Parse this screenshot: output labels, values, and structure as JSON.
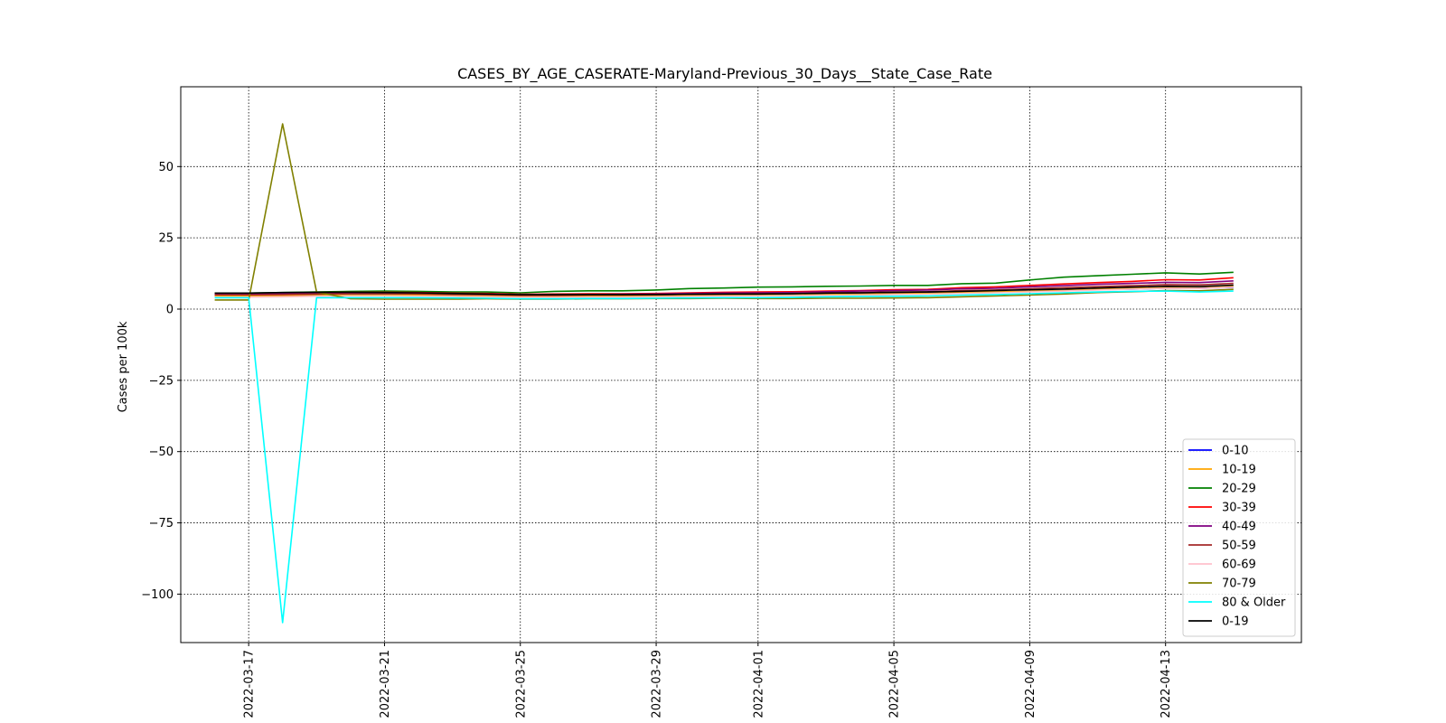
{
  "chart_data": {
    "type": "line",
    "title": "CASES_BY_AGE_CASERATE-Maryland-Previous_30_Days__State_Case_Rate",
    "xlabel": "",
    "ylabel": "Cases per 100k",
    "xlim": [
      "2022-03-15",
      "2022-04-17"
    ],
    "ylim": [
      -117,
      78
    ],
    "yticks": [
      -100,
      -75,
      -50,
      -25,
      0,
      25,
      50
    ],
    "ytick_labels": [
      "−100",
      "−75",
      "−50",
      "−25",
      "0",
      "25",
      "50"
    ],
    "xticks": [
      "2022-03-17",
      "2022-03-21",
      "2022-03-25",
      "2022-03-29",
      "2022-04-01",
      "2022-04-05",
      "2022-04-09",
      "2022-04-13"
    ],
    "grid": true,
    "legend_position": "lower-right",
    "x": [
      "2022-03-16",
      "2022-03-17",
      "2022-03-18",
      "2022-03-19",
      "2022-03-20",
      "2022-03-21",
      "2022-03-22",
      "2022-03-23",
      "2022-03-24",
      "2022-03-25",
      "2022-03-26",
      "2022-03-27",
      "2022-03-28",
      "2022-03-29",
      "2022-03-30",
      "2022-03-31",
      "2022-04-01",
      "2022-04-02",
      "2022-04-03",
      "2022-04-04",
      "2022-04-05",
      "2022-04-06",
      "2022-04-07",
      "2022-04-08",
      "2022-04-09",
      "2022-04-10",
      "2022-04-11",
      "2022-04-12",
      "2022-04-13",
      "2022-04-14",
      "2022-04-15"
    ],
    "series": [
      {
        "name": "0-10",
        "color": "#0000ff",
        "values": [
          4.8,
          4.8,
          4.8,
          4.9,
          5.0,
          5.0,
          5.0,
          4.9,
          4.8,
          4.6,
          4.6,
          4.7,
          4.7,
          4.8,
          4.9,
          5.0,
          5.0,
          5.1,
          5.3,
          5.4,
          5.6,
          5.6,
          5.9,
          6.0,
          6.2,
          6.4,
          6.8,
          7.0,
          7.3,
          7.3,
          7.6
        ]
      },
      {
        "name": "10-19",
        "color": "#ffa500",
        "values": [
          4.6,
          4.6,
          4.7,
          4.8,
          4.9,
          4.9,
          4.9,
          4.8,
          4.7,
          4.5,
          4.5,
          4.5,
          4.5,
          4.6,
          4.7,
          4.8,
          4.8,
          4.9,
          5.1,
          5.2,
          5.4,
          5.5,
          5.8,
          6.0,
          6.2,
          6.5,
          6.9,
          7.3,
          7.7,
          7.8,
          8.2
        ]
      },
      {
        "name": "20-29",
        "color": "#008000",
        "values": [
          5.6,
          5.6,
          5.8,
          6.0,
          6.2,
          6.3,
          6.2,
          6.0,
          6.0,
          5.7,
          6.2,
          6.4,
          6.4,
          6.7,
          7.2,
          7.4,
          7.7,
          7.8,
          8.0,
          8.1,
          8.3,
          8.3,
          8.9,
          9.1,
          10.2,
          11.2,
          11.7,
          12.2,
          12.7,
          12.3,
          12.9
        ]
      },
      {
        "name": "30-39",
        "color": "#ff0000",
        "values": [
          5.5,
          5.4,
          5.6,
          5.8,
          5.9,
          5.9,
          5.8,
          5.6,
          5.5,
          5.2,
          5.3,
          5.4,
          5.4,
          5.5,
          5.7,
          5.9,
          6.0,
          6.1,
          6.3,
          6.5,
          6.8,
          6.9,
          7.5,
          7.8,
          8.3,
          8.8,
          9.3,
          9.7,
          10.3,
          10.2,
          11.0
        ]
      },
      {
        "name": "40-49",
        "color": "#800080",
        "values": [
          5.2,
          5.2,
          5.3,
          5.5,
          5.6,
          5.6,
          5.5,
          5.3,
          5.2,
          5.0,
          5.0,
          5.1,
          5.2,
          5.3,
          5.5,
          5.6,
          5.7,
          5.8,
          6.1,
          6.3,
          6.5,
          6.7,
          7.1,
          7.3,
          7.8,
          8.2,
          8.7,
          9.0,
          9.4,
          9.3,
          9.9
        ]
      },
      {
        "name": "50-59",
        "color": "#a52a2a",
        "values": [
          5.0,
          5.0,
          5.1,
          5.3,
          5.4,
          5.4,
          5.3,
          5.1,
          5.0,
          4.8,
          4.8,
          4.9,
          4.9,
          5.0,
          5.2,
          5.3,
          5.4,
          5.5,
          5.7,
          5.8,
          6.0,
          6.1,
          6.5,
          6.7,
          7.1,
          7.5,
          7.9,
          8.2,
          8.6,
          8.5,
          9.0
        ]
      },
      {
        "name": "60-69",
        "color": "#ffc0cb",
        "values": [
          4.2,
          4.2,
          4.3,
          4.5,
          4.6,
          4.6,
          4.5,
          4.4,
          4.3,
          4.1,
          4.1,
          4.2,
          4.2,
          4.3,
          4.4,
          4.5,
          4.6,
          4.7,
          4.8,
          4.9,
          5.1,
          5.2,
          5.5,
          5.7,
          6.0,
          6.3,
          6.7,
          7.0,
          7.3,
          7.2,
          7.7
        ]
      },
      {
        "name": "70-79",
        "color": "#808000",
        "values": [
          3.2,
          3.2,
          65.0,
          6.0,
          3.6,
          3.5,
          3.5,
          3.5,
          3.6,
          3.5,
          3.5,
          3.6,
          3.6,
          3.7,
          3.7,
          3.8,
          3.7,
          3.7,
          3.8,
          3.8,
          3.9,
          4.0,
          4.3,
          4.6,
          4.9,
          5.3,
          5.8,
          6.1,
          6.5,
          6.4,
          6.9
        ]
      },
      {
        "name": "80 & Older",
        "color": "#00ffff",
        "values": [
          4.0,
          4.0,
          -110.0,
          4.0,
          4.0,
          4.0,
          4.0,
          3.9,
          3.8,
          3.6,
          3.6,
          3.7,
          3.7,
          3.8,
          3.9,
          4.0,
          4.0,
          4.1,
          4.3,
          4.4,
          4.5,
          4.6,
          4.9,
          5.1,
          5.4,
          5.7,
          6.0,
          6.2,
          6.3,
          6.0,
          6.3
        ]
      },
      {
        "name": "0-19",
        "color": "#000000",
        "values": [
          5.6,
          5.6,
          5.8,
          5.9,
          5.9,
          5.8,
          5.7,
          5.5,
          5.3,
          5.1,
          5.1,
          5.1,
          5.1,
          5.1,
          5.2,
          5.3,
          5.3,
          5.4,
          5.6,
          5.7,
          5.9,
          6.0,
          6.2,
          6.5,
          6.8,
          7.0,
          7.4,
          7.7,
          8.0,
          7.9,
          8.4
        ]
      }
    ]
  }
}
